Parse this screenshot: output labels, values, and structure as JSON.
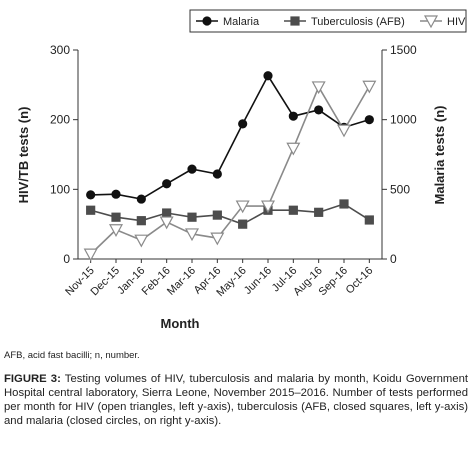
{
  "chart_data": {
    "type": "line",
    "categories": [
      "Nov-15",
      "Dec-15",
      "Jan-16",
      "Feb-16",
      "Mar-16",
      "Apr-16",
      "May-16",
      "Jun-16",
      "Jul-16",
      "Aug-16",
      "Sep-16",
      "Oct-16"
    ],
    "series": [
      {
        "name": "Malaria",
        "color": "#111111",
        "marker": "circle",
        "axis": "y2",
        "values": [
          460,
          465,
          430,
          540,
          645,
          610,
          970,
          1315,
          1025,
          1070,
          945,
          1000
        ]
      },
      {
        "name": "Tuberculosis (AFB)",
        "color": "#4d4d4d",
        "marker": "square",
        "values": [
          70,
          60,
          55,
          66,
          60,
          63,
          50,
          70,
          70,
          67,
          79,
          56
        ]
      },
      {
        "name": "HIV",
        "color": "#8a8a8a",
        "marker": "triangle-down",
        "values": [
          7,
          42,
          27,
          53,
          36,
          30,
          76,
          76,
          159,
          247,
          185,
          248
        ]
      }
    ],
    "ylim": [
      0,
      300
    ],
    "yticks": [
      0,
      100,
      200,
      300
    ],
    "y2lim": [
      0,
      1500
    ],
    "y2ticks": [
      0,
      500,
      1000,
      1500
    ],
    "ylabel": "HIV/TB tests (n)",
    "y2label": "Malaria tests (n)",
    "xlabel": "Month"
  },
  "footnote": "AFB, acid fast bacilli; n, number.",
  "caption": {
    "label": "FIGURE 3:",
    "text": "Testing volumes of HIV, tuberculosis and malaria by month, Koidu Government Hospital central laboratory, Sierra Leone, November 2015–2016. Number of tests performed per month for HIV (open triangles, left y-axis), tuberculosis (AFB, closed squares, left y-axis) and malaria (closed circles, on right y-axis)."
  }
}
